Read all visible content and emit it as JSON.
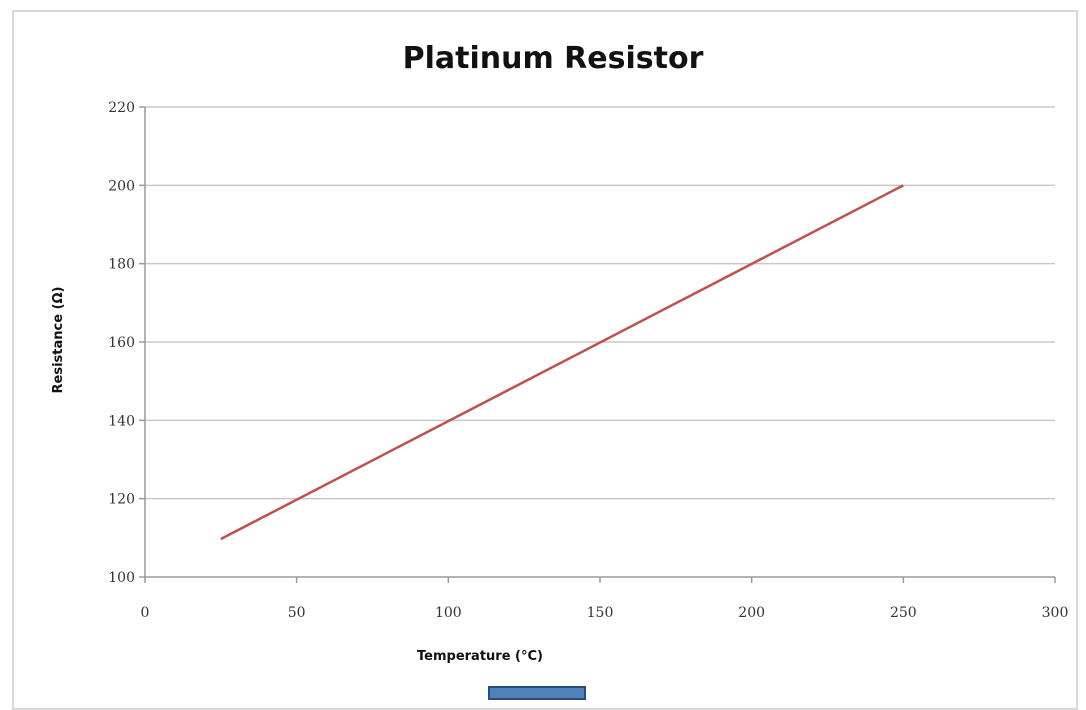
{
  "chart_data": {
    "type": "line",
    "title": "Platinum Resistor",
    "xlabel": "Temperature (°C)",
    "ylabel": "Resistance (Ω)",
    "xlim": [
      0,
      300
    ],
    "ylim": [
      100,
      220
    ],
    "xticks": [
      0,
      50,
      100,
      150,
      200,
      250,
      300
    ],
    "yticks": [
      100,
      120,
      140,
      160,
      180,
      200,
      220
    ],
    "grid": "horizontal",
    "series": [
      {
        "color": "#c0504d",
        "points": [
          {
            "x": 25,
            "y": 109.7
          },
          {
            "x": 250,
            "y": 200
          }
        ]
      }
    ]
  }
}
